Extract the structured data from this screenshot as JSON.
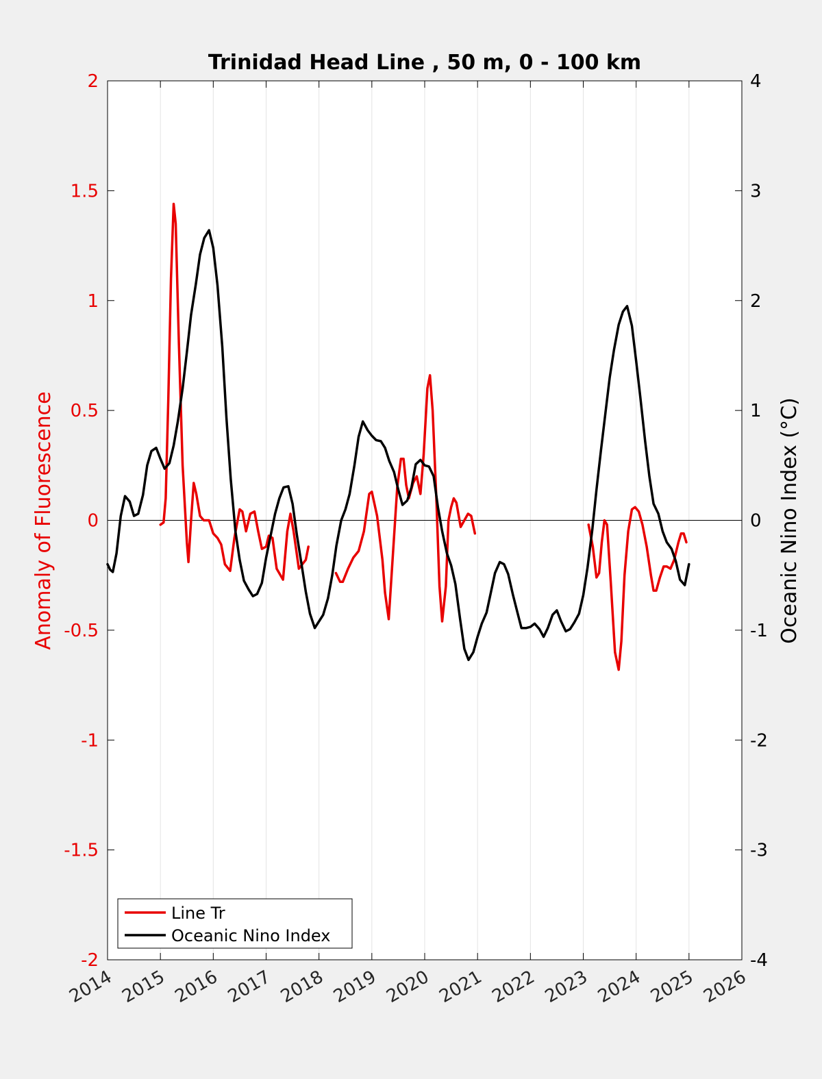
{
  "chart_data": {
    "type": "line",
    "title": "Trinidad Head Line , 50 m, 0 - 100 km",
    "ylabel_left": "Anomaly of Fluorescence",
    "ylabel_right": "Oceanic Nino Index (°C)",
    "xlim": [
      2014,
      2026
    ],
    "ylim_left": [
      -2,
      2
    ],
    "ylim_right": [
      -4,
      4
    ],
    "x_ticks": [
      "2014",
      "2015",
      "2016",
      "2017",
      "2018",
      "2019",
      "2020",
      "2021",
      "2022",
      "2023",
      "2024",
      "2025",
      "2026"
    ],
    "y_ticks_left": [
      "2",
      "1.5",
      "1",
      "0.5",
      "0",
      "-0.5",
      "-1",
      "-1.5",
      "-2"
    ],
    "y_ticks_right": [
      "4",
      "3",
      "2",
      "1",
      "0",
      "-1",
      "-2",
      "-3",
      "-4"
    ],
    "grid": "vertical",
    "legend": {
      "position": "bottom-left"
    },
    "colors": {
      "line_tr": "#e80000",
      "oni": "#000000",
      "left_axis": "#e80000",
      "right_axis": "#000000"
    },
    "series": [
      {
        "name": "Line Tr",
        "axis": "left",
        "color": "#e80000",
        "segments": [
          [
            [
              2015.0,
              -0.02
            ],
            [
              2015.06,
              -0.01
            ],
            [
              2015.1,
              0.1
            ],
            [
              2015.15,
              0.55
            ],
            [
              2015.2,
              1.1
            ],
            [
              2015.25,
              1.44
            ],
            [
              2015.29,
              1.35
            ],
            [
              2015.35,
              0.8
            ],
            [
              2015.42,
              0.25
            ],
            [
              2015.5,
              -0.1
            ],
            [
              2015.53,
              -0.19
            ],
            [
              2015.58,
              0.0
            ],
            [
              2015.63,
              0.17
            ],
            [
              2015.68,
              0.12
            ],
            [
              2015.75,
              0.02
            ],
            [
              2015.82,
              0.0
            ],
            [
              2015.92,
              0.0
            ],
            [
              2016.0,
              -0.06
            ],
            [
              2016.08,
              -0.08
            ],
            [
              2016.15,
              -0.11
            ],
            [
              2016.22,
              -0.2
            ],
            [
              2016.32,
              -0.23
            ],
            [
              2016.4,
              -0.08
            ],
            [
              2016.5,
              0.05
            ],
            [
              2016.55,
              0.04
            ],
            [
              2016.62,
              -0.05
            ],
            [
              2016.7,
              0.03
            ],
            [
              2016.78,
              0.04
            ],
            [
              2016.85,
              -0.05
            ],
            [
              2016.92,
              -0.13
            ],
            [
              2017.0,
              -0.12
            ],
            [
              2017.05,
              -0.07
            ],
            [
              2017.12,
              -0.08
            ],
            [
              2017.2,
              -0.22
            ],
            [
              2017.32,
              -0.27
            ],
            [
              2017.4,
              -0.05
            ],
            [
              2017.46,
              0.03
            ],
            [
              2017.52,
              -0.05
            ],
            [
              2017.62,
              -0.22
            ],
            [
              2017.75,
              -0.18
            ],
            [
              2017.8,
              -0.12
            ]
          ],
          [
            [
              2018.32,
              -0.24
            ],
            [
              2018.4,
              -0.28
            ],
            [
              2018.45,
              -0.28
            ],
            [
              2018.55,
              -0.22
            ],
            [
              2018.65,
              -0.17
            ],
            [
              2018.75,
              -0.14
            ],
            [
              2018.85,
              -0.05
            ],
            [
              2018.95,
              0.12
            ],
            [
              2019.0,
              0.13
            ],
            [
              2019.1,
              0.02
            ],
            [
              2019.2,
              -0.18
            ],
            [
              2019.25,
              -0.33
            ],
            [
              2019.32,
              -0.45
            ],
            [
              2019.4,
              -0.15
            ],
            [
              2019.48,
              0.15
            ],
            [
              2019.55,
              0.28
            ],
            [
              2019.6,
              0.28
            ],
            [
              2019.65,
              0.16
            ],
            [
              2019.7,
              0.1
            ],
            [
              2019.78,
              0.17
            ],
            [
              2019.85,
              0.2
            ],
            [
              2019.92,
              0.12
            ],
            [
              2019.98,
              0.3
            ],
            [
              2020.05,
              0.6
            ],
            [
              2020.1,
              0.66
            ],
            [
              2020.15,
              0.5
            ],
            [
              2020.22,
              0.1
            ],
            [
              2020.28,
              -0.3
            ],
            [
              2020.33,
              -0.46
            ],
            [
              2020.4,
              -0.3
            ],
            [
              2020.45,
              0.0
            ],
            [
              2020.5,
              0.06
            ],
            [
              2020.55,
              0.1
            ],
            [
              2020.6,
              0.08
            ],
            [
              2020.68,
              -0.03
            ],
            [
              2020.75,
              0.0
            ],
            [
              2020.82,
              0.03
            ],
            [
              2020.88,
              0.02
            ],
            [
              2020.95,
              -0.06
            ]
          ]
        ],
        "segment_note": "gaps between 2017.8–2018.3 and 2021–2023.1",
        "segments_tail": [
          [
            2023.1,
            -0.02
          ],
          [
            2023.18,
            -0.12
          ],
          [
            2023.25,
            -0.26
          ],
          [
            2023.3,
            -0.24
          ],
          [
            2023.35,
            -0.1
          ],
          [
            2023.4,
            0.0
          ],
          [
            2023.45,
            -0.02
          ],
          [
            2023.52,
            -0.28
          ],
          [
            2023.6,
            -0.6
          ],
          [
            2023.67,
            -0.68
          ],
          [
            2023.72,
            -0.55
          ],
          [
            2023.78,
            -0.25
          ],
          [
            2023.85,
            -0.05
          ],
          [
            2023.92,
            0.05
          ],
          [
            2023.98,
            0.06
          ],
          [
            2024.05,
            0.04
          ],
          [
            2024.12,
            -0.02
          ],
          [
            2024.2,
            -0.12
          ],
          [
            2024.28,
            -0.25
          ],
          [
            2024.33,
            -0.32
          ],
          [
            2024.38,
            -0.32
          ],
          [
            2024.45,
            -0.26
          ],
          [
            2024.52,
            -0.21
          ],
          [
            2024.58,
            -0.21
          ],
          [
            2024.65,
            -0.22
          ],
          [
            2024.72,
            -0.18
          ],
          [
            2024.8,
            -0.1
          ],
          [
            2024.85,
            -0.06
          ],
          [
            2024.9,
            -0.06
          ],
          [
            2024.95,
            -0.1
          ]
        ]
      },
      {
        "name": "Oceanic Nino Index",
        "axis": "right",
        "color": "#000000",
        "points": [
          [
            2014.0,
            -0.4
          ],
          [
            2014.05,
            -0.45
          ],
          [
            2014.1,
            -0.47
          ],
          [
            2014.17,
            -0.3
          ],
          [
            2014.25,
            0.04
          ],
          [
            2014.33,
            0.22
          ],
          [
            2014.42,
            0.17
          ],
          [
            2014.5,
            0.04
          ],
          [
            2014.58,
            0.06
          ],
          [
            2014.67,
            0.23
          ],
          [
            2014.75,
            0.5
          ],
          [
            2014.83,
            0.63
          ],
          [
            2014.92,
            0.66
          ],
          [
            2015.0,
            0.56
          ],
          [
            2015.08,
            0.47
          ],
          [
            2015.17,
            0.52
          ],
          [
            2015.25,
            0.68
          ],
          [
            2015.33,
            0.9
          ],
          [
            2015.42,
            1.2
          ],
          [
            2015.5,
            1.53
          ],
          [
            2015.58,
            1.87
          ],
          [
            2015.67,
            2.15
          ],
          [
            2015.75,
            2.42
          ],
          [
            2015.83,
            2.57
          ],
          [
            2015.92,
            2.64
          ],
          [
            2016.0,
            2.48
          ],
          [
            2016.08,
            2.14
          ],
          [
            2016.17,
            1.58
          ],
          [
            2016.25,
            0.93
          ],
          [
            2016.33,
            0.38
          ],
          [
            2016.42,
            -0.1
          ],
          [
            2016.5,
            -0.36
          ],
          [
            2016.58,
            -0.55
          ],
          [
            2016.67,
            -0.63
          ],
          [
            2016.75,
            -0.69
          ],
          [
            2016.83,
            -0.67
          ],
          [
            2016.92,
            -0.57
          ],
          [
            2017.0,
            -0.34
          ],
          [
            2017.08,
            -0.15
          ],
          [
            2017.17,
            0.06
          ],
          [
            2017.25,
            0.2
          ],
          [
            2017.33,
            0.3
          ],
          [
            2017.42,
            0.31
          ],
          [
            2017.5,
            0.15
          ],
          [
            2017.58,
            -0.13
          ],
          [
            2017.67,
            -0.4
          ],
          [
            2017.75,
            -0.65
          ],
          [
            2017.83,
            -0.85
          ],
          [
            2017.92,
            -0.98
          ],
          [
            2018.0,
            -0.92
          ],
          [
            2018.08,
            -0.86
          ],
          [
            2018.17,
            -0.71
          ],
          [
            2018.25,
            -0.5
          ],
          [
            2018.33,
            -0.23
          ],
          [
            2018.42,
            0.0
          ],
          [
            2018.5,
            0.1
          ],
          [
            2018.58,
            0.24
          ],
          [
            2018.67,
            0.5
          ],
          [
            2018.75,
            0.76
          ],
          [
            2018.83,
            0.9
          ],
          [
            2018.92,
            0.82
          ],
          [
            2019.0,
            0.77
          ],
          [
            2019.08,
            0.73
          ],
          [
            2019.17,
            0.72
          ],
          [
            2019.25,
            0.66
          ],
          [
            2019.33,
            0.54
          ],
          [
            2019.42,
            0.44
          ],
          [
            2019.5,
            0.28
          ],
          [
            2019.58,
            0.14
          ],
          [
            2019.67,
            0.18
          ],
          [
            2019.75,
            0.3
          ],
          [
            2019.83,
            0.51
          ],
          [
            2019.92,
            0.55
          ],
          [
            2020.0,
            0.5
          ],
          [
            2020.08,
            0.49
          ],
          [
            2020.17,
            0.4
          ],
          [
            2020.25,
            0.12
          ],
          [
            2020.33,
            -0.1
          ],
          [
            2020.42,
            -0.3
          ],
          [
            2020.5,
            -0.41
          ],
          [
            2020.58,
            -0.58
          ],
          [
            2020.67,
            -0.9
          ],
          [
            2020.75,
            -1.17
          ],
          [
            2020.83,
            -1.27
          ],
          [
            2020.92,
            -1.2
          ],
          [
            2021.0,
            -1.06
          ],
          [
            2021.08,
            -0.94
          ],
          [
            2021.17,
            -0.84
          ],
          [
            2021.25,
            -0.66
          ],
          [
            2021.33,
            -0.48
          ],
          [
            2021.42,
            -0.38
          ],
          [
            2021.5,
            -0.4
          ],
          [
            2021.58,
            -0.49
          ],
          [
            2021.67,
            -0.68
          ],
          [
            2021.75,
            -0.83
          ],
          [
            2021.83,
            -0.98
          ],
          [
            2021.92,
            -0.98
          ],
          [
            2022.0,
            -0.97
          ],
          [
            2022.08,
            -0.94
          ],
          [
            2022.17,
            -0.99
          ],
          [
            2022.25,
            -1.06
          ],
          [
            2022.33,
            -0.98
          ],
          [
            2022.42,
            -0.86
          ],
          [
            2022.5,
            -0.82
          ],
          [
            2022.58,
            -0.92
          ],
          [
            2022.67,
            -1.01
          ],
          [
            2022.75,
            -0.99
          ],
          [
            2022.83,
            -0.93
          ],
          [
            2022.92,
            -0.85
          ],
          [
            2023.0,
            -0.68
          ],
          [
            2023.08,
            -0.43
          ],
          [
            2023.17,
            -0.09
          ],
          [
            2023.25,
            0.28
          ],
          [
            2023.33,
            0.62
          ],
          [
            2023.42,
            0.98
          ],
          [
            2023.5,
            1.3
          ],
          [
            2023.58,
            1.55
          ],
          [
            2023.67,
            1.78
          ],
          [
            2023.75,
            1.9
          ],
          [
            2023.83,
            1.95
          ],
          [
            2023.92,
            1.77
          ],
          [
            2024.0,
            1.45
          ],
          [
            2024.08,
            1.12
          ],
          [
            2024.17,
            0.72
          ],
          [
            2024.25,
            0.4
          ],
          [
            2024.33,
            0.15
          ],
          [
            2024.42,
            0.06
          ],
          [
            2024.5,
            -0.1
          ],
          [
            2024.58,
            -0.2
          ],
          [
            2024.67,
            -0.26
          ],
          [
            2024.75,
            -0.37
          ],
          [
            2024.83,
            -0.54
          ],
          [
            2024.92,
            -0.59
          ],
          [
            2025.0,
            -0.4
          ]
        ]
      }
    ]
  },
  "legend_entries": [
    "Line Tr",
    "Oceanic Nino Index"
  ]
}
